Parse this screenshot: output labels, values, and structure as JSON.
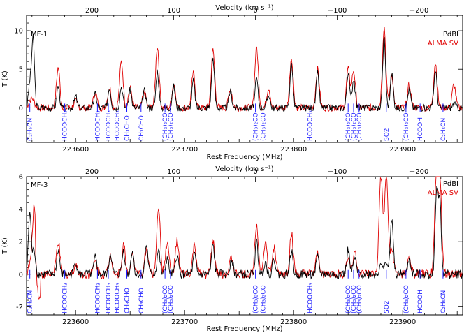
{
  "chart_data": [
    {
      "type": "line",
      "panel_label": "MF-1",
      "xlabel": "Rest Frequency (MHz)",
      "ylabel": "T (K)",
      "top_xlabel": "Velocity (km s⁻¹)",
      "xlim": [
        223555,
        223955
      ],
      "ylim": [
        -4.5,
        12
      ],
      "x_ticks": [
        223600,
        223700,
        223800,
        223900
      ],
      "y_ticks": [
        0,
        5,
        10
      ],
      "top_ticks": [
        {
          "label": "200",
          "freq": 223615
        },
        {
          "label": "100",
          "freq": 223690
        },
        {
          "label": "0",
          "freq": 223765
        },
        {
          "label": "−100",
          "freq": 223840
        },
        {
          "label": "−200",
          "freq": 223915
        }
      ],
      "legend": [
        {
          "name": "PdBI",
          "color": "#000000"
        },
        {
          "name": "ALMA SV",
          "color": "#e00000"
        }
      ],
      "peaks": [
        {
          "x": 223558,
          "pdbi": 3.0,
          "alma": 0.8
        },
        {
          "x": 223561,
          "pdbi": 9.0,
          "alma": 1.0
        },
        {
          "x": 223584,
          "pdbi": 2.8,
          "alma": 5.2
        },
        {
          "x": 223600,
          "pdbi": 1.5,
          "alma": 0.8
        },
        {
          "x": 223618,
          "pdbi": 1.8,
          "alma": 2.0
        },
        {
          "x": 223631,
          "pdbi": 2.6,
          "alma": 2.6
        },
        {
          "x": 223642,
          "pdbi": 2.8,
          "alma": 6.0
        },
        {
          "x": 223650,
          "pdbi": 2.3,
          "alma": 2.6
        },
        {
          "x": 223663,
          "pdbi": 2.2,
          "alma": 2.0
        },
        {
          "x": 223675,
          "pdbi": 4.8,
          "alma": 8.0
        },
        {
          "x": 223690,
          "pdbi": 2.8,
          "alma": 3.2
        },
        {
          "x": 223708,
          "pdbi": 3.5,
          "alma": 4.5
        },
        {
          "x": 223726,
          "pdbi": 6.5,
          "alma": 7.5
        },
        {
          "x": 223742,
          "pdbi": 2.2,
          "alma": 2.5
        },
        {
          "x": 223766,
          "pdbi": 3.8,
          "alma": 7.8
        },
        {
          "x": 223777,
          "pdbi": 1.8,
          "alma": 2.6
        },
        {
          "x": 223798,
          "pdbi": 5.8,
          "alma": 6.5
        },
        {
          "x": 223822,
          "pdbi": 4.5,
          "alma": 5.0
        },
        {
          "x": 223850,
          "pdbi": 4.6,
          "alma": 5.0
        },
        {
          "x": 223855,
          "pdbi": 3.8,
          "alma": 4.8
        },
        {
          "x": 223883,
          "pdbi": 9.0,
          "alma": 10.5
        },
        {
          "x": 223890,
          "pdbi": 4.5,
          "alma": 4.0
        },
        {
          "x": 223906,
          "pdbi": 2.5,
          "alma": 3.0
        },
        {
          "x": 223930,
          "pdbi": 5.0,
          "alma": 5.8
        },
        {
          "x": 223947,
          "pdbi": 0.5,
          "alma": 3.0
        }
      ],
      "species_labels": [
        {
          "text": "C₂H₅CN",
          "freq": 223558
        },
        {
          "text": "HCOOCH₃",
          "freq": 223590
        },
        {
          "text": "HCOOCH₃",
          "freq": 223620
        },
        {
          "text": "HCOOCH₃",
          "freq": 223630
        },
        {
          "text": "HCOOCH₃",
          "freq": 223638
        },
        {
          "text": "CH₃CHO",
          "freq": 223647
        },
        {
          "text": "CH₃CHO",
          "freq": 223660
        },
        {
          "text": "(CH₃)₂CO",
          "freq": 223682
        },
        {
          "text": "(CH₃)₂CO",
          "freq": 223687
        },
        {
          "text": "(CH₃)₂CO",
          "freq": 223765
        },
        {
          "text": "(CH₃)₂CO",
          "freq": 223772
        },
        {
          "text": "HCOOCH₃",
          "freq": 223815
        },
        {
          "text": "(CH₃)₂CO",
          "freq": 223850
        },
        {
          "text": "(CH₃)₂CO",
          "freq": 223855
        },
        {
          "text": "(CH₃)₂CO",
          "freq": 223860
        },
        {
          "text": "SO2",
          "freq": 223885
        },
        {
          "text": "(CH₃)₂CO",
          "freq": 223903
        },
        {
          "text": "HCOOH",
          "freq": 223916
        },
        {
          "text": "C₂H₅CN",
          "freq": 223937
        }
      ]
    },
    {
      "type": "line",
      "panel_label": "MF-3",
      "xlabel": "Rest Frequency (MHz)",
      "ylabel": "T (K)",
      "top_xlabel": "Velocity (km s⁻¹)",
      "xlim": [
        223555,
        223955
      ],
      "ylim": [
        -2.5,
        6
      ],
      "x_ticks": [
        223600,
        223700,
        223800,
        223900
      ],
      "y_ticks": [
        -2,
        0,
        2,
        4,
        6
      ],
      "top_ticks": [
        {
          "label": "200",
          "freq": 223615
        },
        {
          "label": "100",
          "freq": 223690
        },
        {
          "label": "0",
          "freq": 223765
        },
        {
          "label": "−100",
          "freq": 223840
        },
        {
          "label": "−200",
          "freq": 223915
        }
      ],
      "legend": [
        {
          "name": "PdBI",
          "color": "#000000"
        },
        {
          "name": "ALMA SV",
          "color": "#e00000"
        }
      ],
      "peaks": [
        {
          "x": 223558,
          "pdbi": 3.8,
          "alma": 0.5
        },
        {
          "x": 223562,
          "pdbi": 1.5,
          "alma": 4.2
        },
        {
          "x": 223584,
          "pdbi": 1.5,
          "alma": 2.0
        },
        {
          "x": 223600,
          "pdbi": 0.8,
          "alma": 0.6
        },
        {
          "x": 223618,
          "pdbi": 1.0,
          "alma": 0.8
        },
        {
          "x": 223632,
          "pdbi": 1.3,
          "alma": 1.2
        },
        {
          "x": 223644,
          "pdbi": 1.5,
          "alma": 1.8
        },
        {
          "x": 223652,
          "pdbi": 1.5,
          "alma": 1.2
        },
        {
          "x": 223665,
          "pdbi": 1.8,
          "alma": 1.6
        },
        {
          "x": 223676,
          "pdbi": 1.5,
          "alma": 4.2
        },
        {
          "x": 223684,
          "pdbi": 1.0,
          "alma": 2.0
        },
        {
          "x": 223693,
          "pdbi": 1.2,
          "alma": 2.0
        },
        {
          "x": 223709,
          "pdbi": 1.2,
          "alma": 1.8
        },
        {
          "x": 223726,
          "pdbi": 1.8,
          "alma": 2.0
        },
        {
          "x": 223743,
          "pdbi": 1.0,
          "alma": 1.0
        },
        {
          "x": 223766,
          "pdbi": 2.0,
          "alma": 3.2
        },
        {
          "x": 223774,
          "pdbi": 0.8,
          "alma": 2.0
        },
        {
          "x": 223782,
          "pdbi": 1.0,
          "alma": 1.6
        },
        {
          "x": 223798,
          "pdbi": 1.4,
          "alma": 2.5
        },
        {
          "x": 223822,
          "pdbi": 1.0,
          "alma": 1.2
        },
        {
          "x": 223850,
          "pdbi": 1.5,
          "alma": 1.0
        },
        {
          "x": 223856,
          "pdbi": 1.0,
          "alma": 1.4
        },
        {
          "x": 223880,
          "pdbi": 0.8,
          "alma": 6.0
        },
        {
          "x": 223885,
          "pdbi": 0.8,
          "alma": 6.0
        },
        {
          "x": 223890,
          "pdbi": 3.5,
          "alma": 1.5
        },
        {
          "x": 223906,
          "pdbi": 1.0,
          "alma": 1.0
        },
        {
          "x": 223931,
          "pdbi": 5.0,
          "alma": 6.0
        },
        {
          "x": 223934,
          "pdbi": 4.5,
          "alma": 6.0
        }
      ],
      "species_labels": [
        {
          "text": "C₂H₅CN",
          "freq": 223558
        },
        {
          "text": "HCOOCH₃",
          "freq": 223590
        },
        {
          "text": "HCOOCH₃",
          "freq": 223620
        },
        {
          "text": "HCOOCH₃",
          "freq": 223630
        },
        {
          "text": "HCOOCH₃",
          "freq": 223638
        },
        {
          "text": "CH₃CHO",
          "freq": 223647
        },
        {
          "text": "CH₃CHO",
          "freq": 223660
        },
        {
          "text": "(CH₃)₂CO",
          "freq": 223682
        },
        {
          "text": "(CH₃)₂CO",
          "freq": 223687
        },
        {
          "text": "(CH₃)₂CO",
          "freq": 223765
        },
        {
          "text": "(CH₃)₂CO",
          "freq": 223772
        },
        {
          "text": "HCOOCH₃",
          "freq": 223815
        },
        {
          "text": "(CH₃)₂CO",
          "freq": 223850
        },
        {
          "text": "(CH₃)₂CO",
          "freq": 223855
        },
        {
          "text": "(CH₃)₂CO",
          "freq": 223860
        },
        {
          "text": "SO2",
          "freq": 223885
        },
        {
          "text": "(CH₃)₂CO",
          "freq": 223903
        },
        {
          "text": "HCOOH",
          "freq": 223916
        },
        {
          "text": "C₂H₅CN",
          "freq": 223937
        }
      ]
    }
  ]
}
